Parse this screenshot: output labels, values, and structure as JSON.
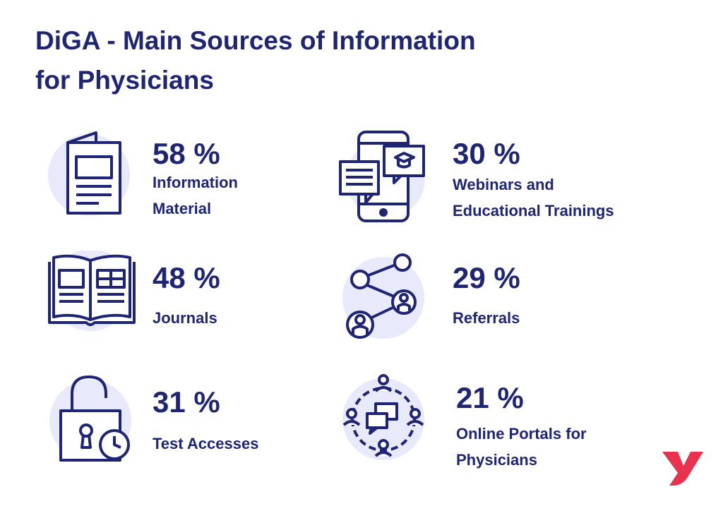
{
  "title_lines": [
    "DiGA - Main Sources of Information",
    "for Physicians"
  ],
  "colors": {
    "navy": "#1f2575",
    "circle": "#e8e9fb",
    "logo": "#e8324e",
    "background": "#ffffff"
  },
  "chart_data": {
    "type": "table",
    "title": "DiGA - Main Sources of Information for Physicians",
    "unit": "%",
    "categories": [
      "Information Material",
      "Webinars and Educational Trainings",
      "Journals",
      "Referrals",
      "Test Accesses",
      "Online Portals for Physicians"
    ],
    "values": [
      58,
      30,
      48,
      29,
      31,
      21
    ]
  },
  "items": [
    {
      "pct": "58 %",
      "label_lines": [
        "Information",
        "Material"
      ],
      "icon": "brochure-icon"
    },
    {
      "pct": "30 %",
      "label_lines": [
        "Webinars and",
        "Educational Trainings"
      ],
      "icon": "smartphone-education-icon"
    },
    {
      "pct": "48 %",
      "label_lines": [
        "Journals"
      ],
      "icon": "open-book-icon"
    },
    {
      "pct": "29 %",
      "label_lines": [
        "Referrals"
      ],
      "icon": "network-referral-icon"
    },
    {
      "pct": "31 %",
      "label_lines": [
        "Test Accesses"
      ],
      "icon": "padlock-clock-icon"
    },
    {
      "pct": "21 %",
      "label_lines": [
        "Online Portals for",
        "Physicians"
      ],
      "icon": "people-chat-circle-icon"
    }
  ],
  "logo": {
    "icon": "brand-y-logo-icon"
  }
}
